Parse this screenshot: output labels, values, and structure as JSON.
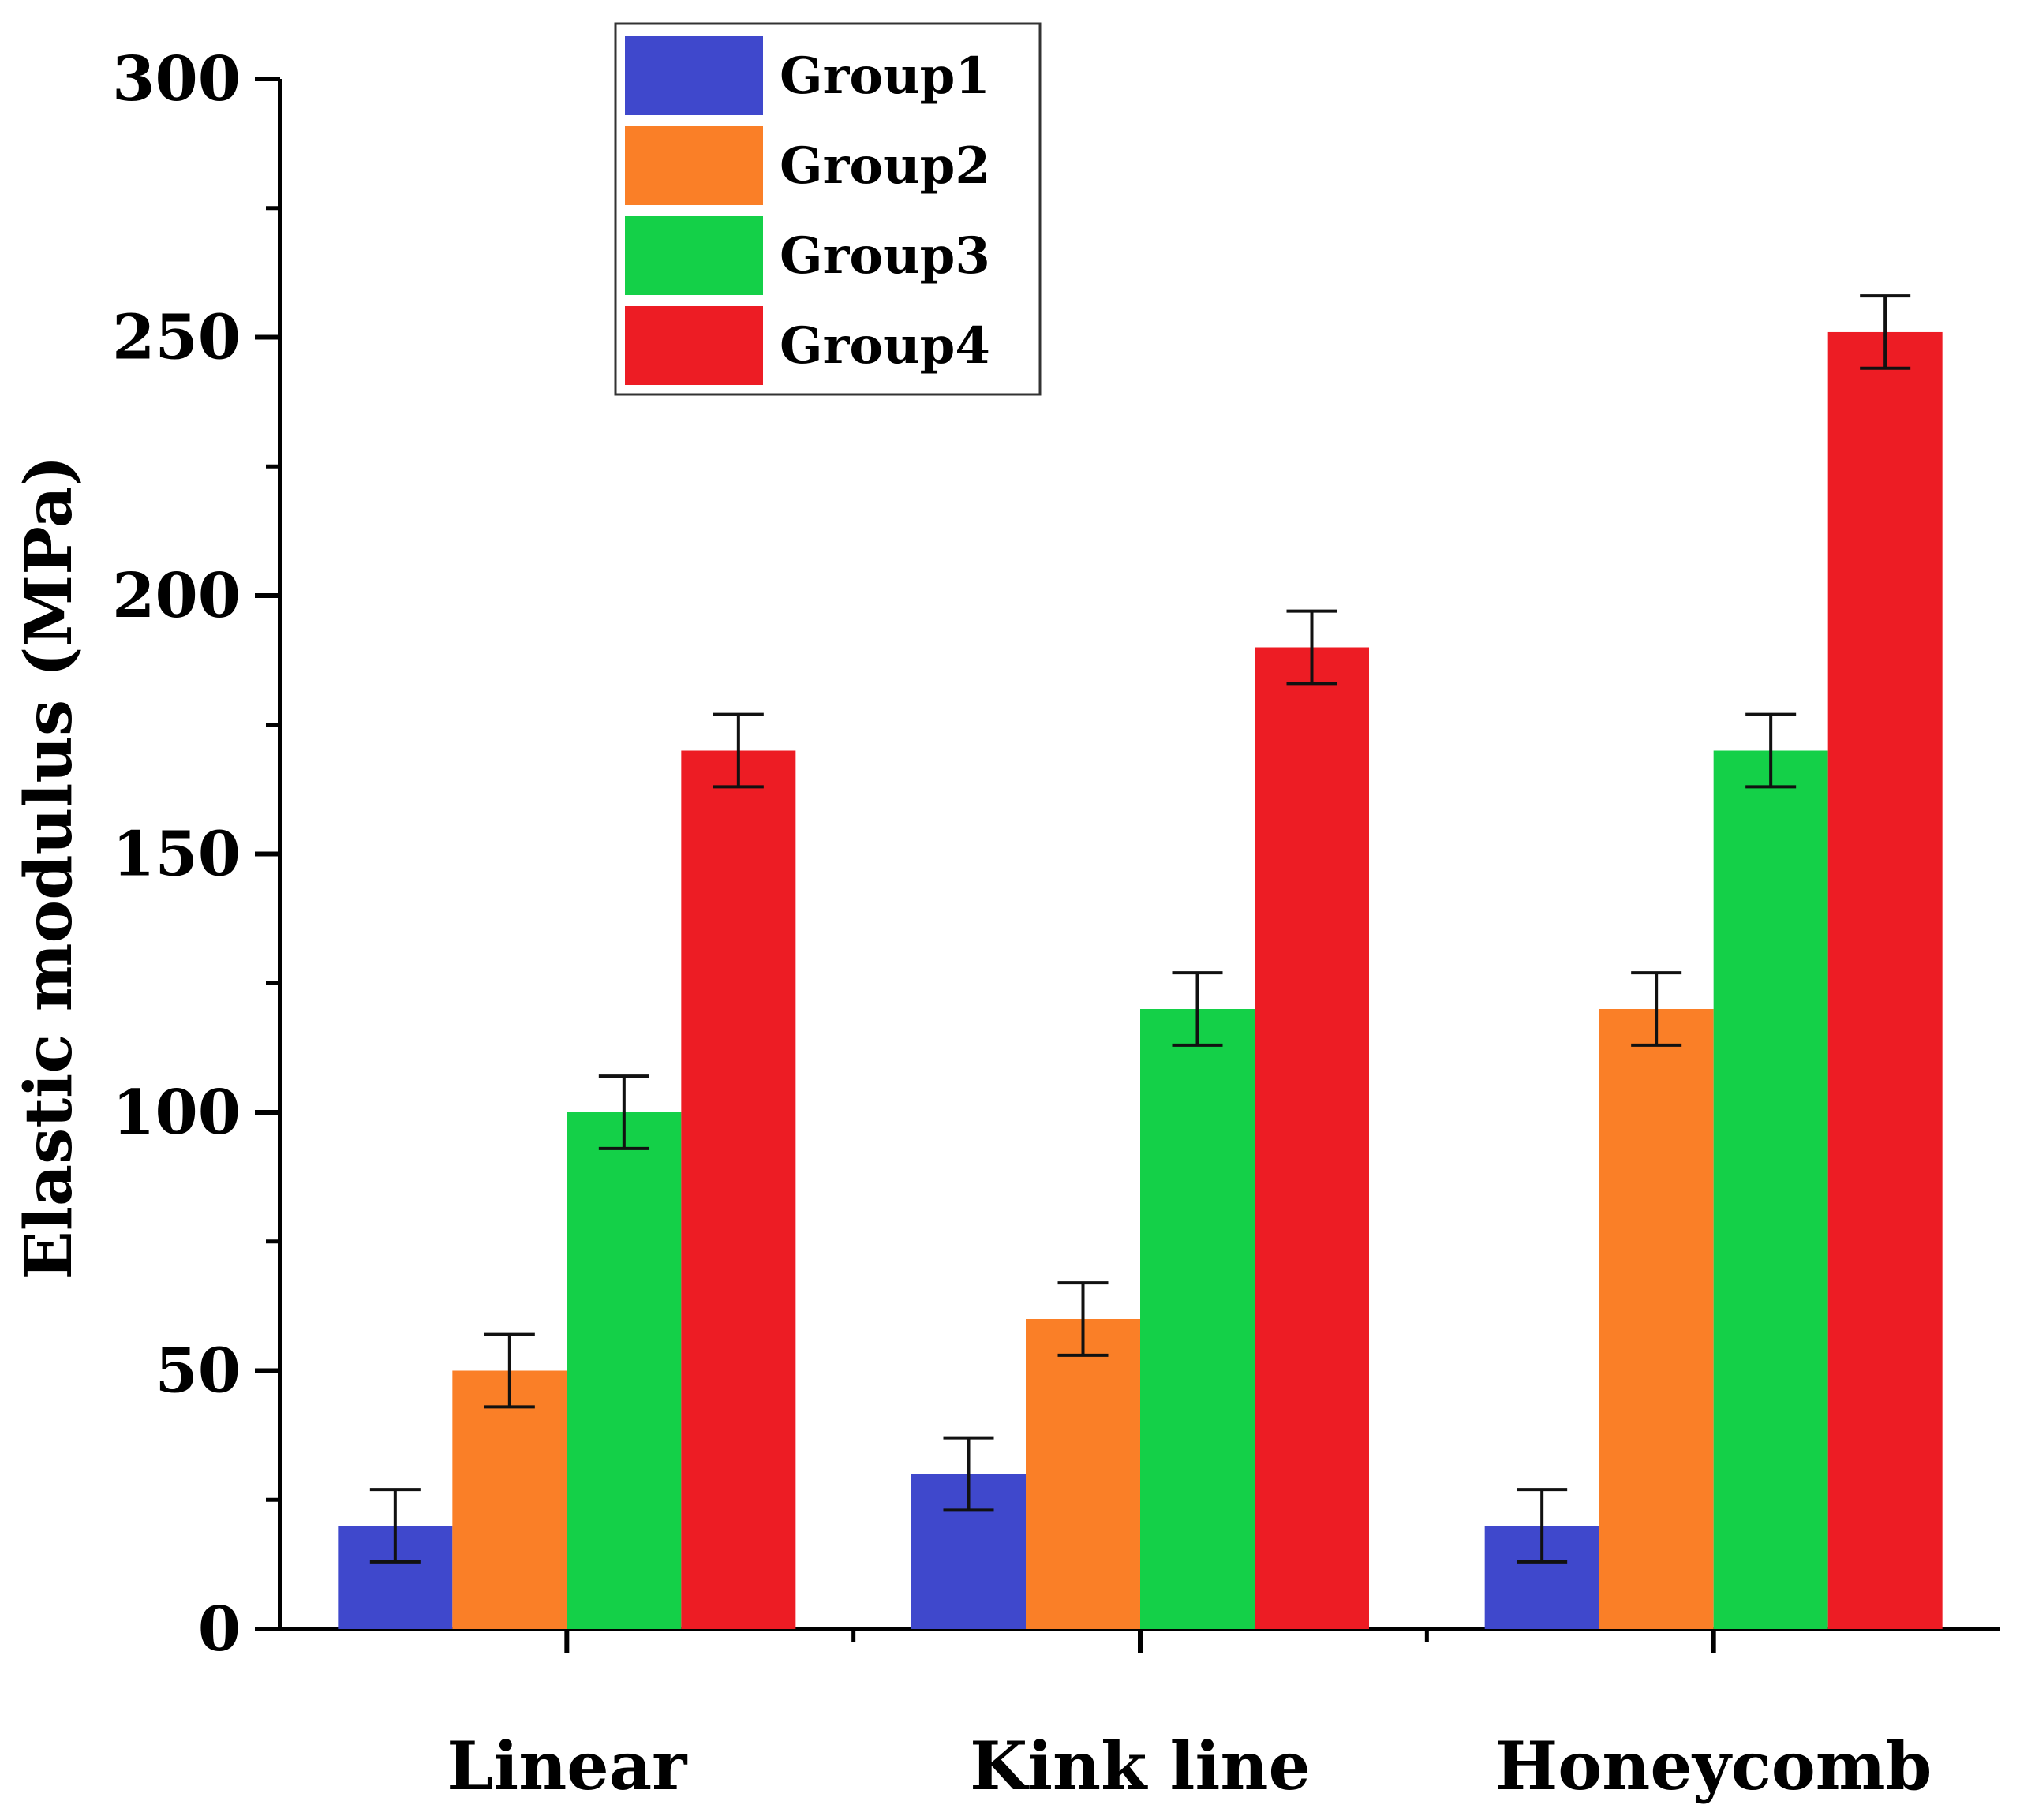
{
  "chart_data": {
    "type": "bar",
    "title": "",
    "xlabel": "",
    "ylabel": "Elastic modulus (MPa)",
    "ylim": [
      0,
      300
    ],
    "yticks": [
      0,
      50,
      100,
      150,
      200,
      250,
      300
    ],
    "categories": [
      "Linear",
      "Kink line",
      "Honeycomb"
    ],
    "series": [
      {
        "name": "Group1",
        "color": "#3f48cc",
        "values": [
          20,
          30,
          20
        ],
        "errors": [
          7,
          7,
          7
        ]
      },
      {
        "name": "Group2",
        "color": "#fa7f27",
        "values": [
          50,
          60,
          120
        ],
        "errors": [
          7,
          7,
          7
        ]
      },
      {
        "name": "Group3",
        "color": "#14d048",
        "values": [
          100,
          120,
          170
        ],
        "errors": [
          7,
          7,
          7
        ]
      },
      {
        "name": "Group4",
        "color": "#ed1c24",
        "values": [
          170,
          190,
          251
        ],
        "errors": [
          7,
          7,
          7
        ]
      }
    ],
    "legend_position": "top-left",
    "grid": false
  }
}
